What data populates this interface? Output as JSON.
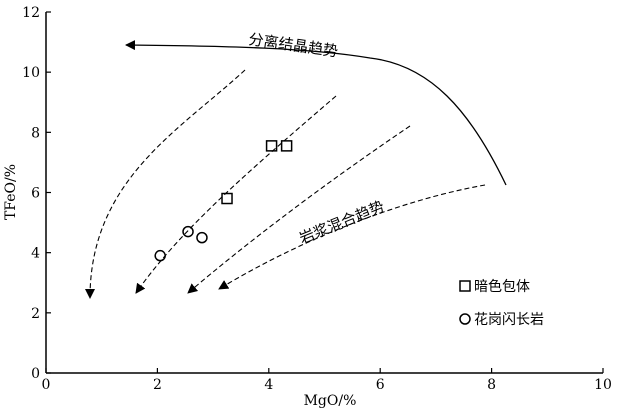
{
  "chart_data": {
    "type": "scatter",
    "xlabel": "MgO/%",
    "ylabel": "TFeO/%",
    "xlim": [
      0,
      10
    ],
    "ylim": [
      0,
      12
    ],
    "x_ticks": [
      "0",
      "2",
      "4",
      "6",
      "8",
      "10"
    ],
    "y_ticks": [
      "0",
      "2",
      "4",
      "6",
      "8",
      "10",
      "12"
    ],
    "series": [
      {
        "name": "暗色包体",
        "marker": "square",
        "points": [
          [
            4.05,
            7.55
          ],
          [
            4.32,
            7.55
          ],
          [
            3.25,
            5.8
          ]
        ]
      },
      {
        "name": "花岗闪长岩",
        "marker": "circle",
        "points": [
          [
            2.05,
            3.9
          ],
          [
            2.55,
            4.7
          ],
          [
            2.8,
            4.5
          ]
        ]
      }
    ],
    "annotations": {
      "crystallization_trend": "分离结晶趋势",
      "mixing_trend": "岩浆混合趋势"
    },
    "legend_position": "lower-right"
  }
}
